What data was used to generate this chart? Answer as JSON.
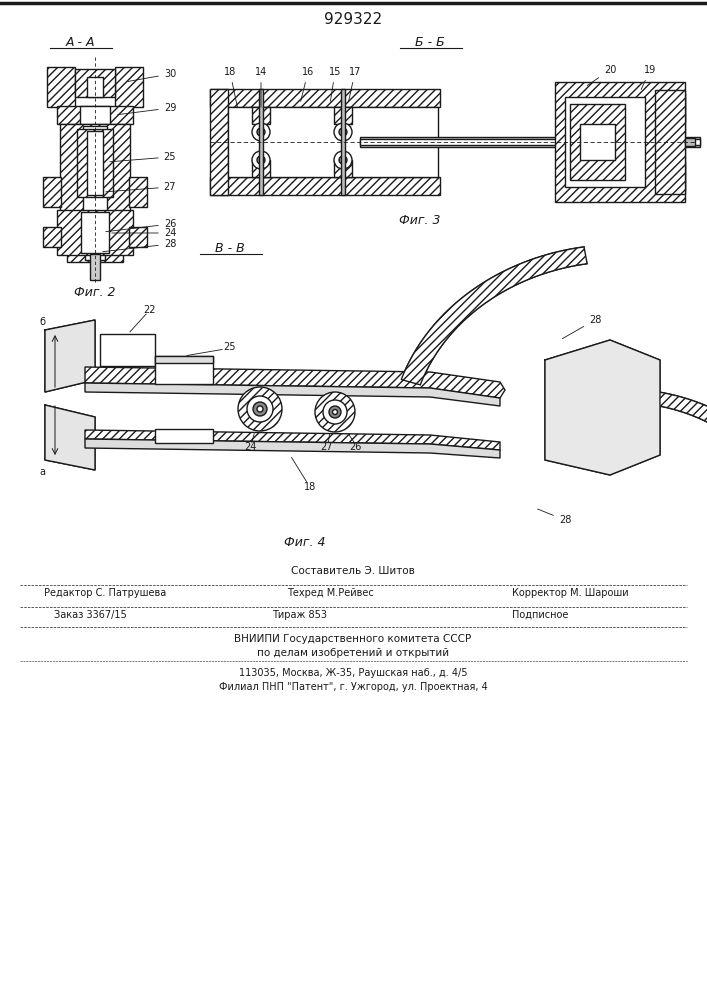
{
  "patent_number": "929322",
  "bg": "#ffffff",
  "lc": "#1a1a1a",
  "fig2_label": "А - А",
  "fig3_label": "Б - Б",
  "fig4_label": "В - В",
  "fig2_caption": "Фиг. 2",
  "fig3_caption": "Фиг. 3",
  "fig4_caption": "Фиг. 4",
  "footer_line1": "Составитель Э. Шитов",
  "footer_line2_left": "Редактор С. Патрушева",
  "footer_line2_mid": "Техред М.Рейвес",
  "footer_line2_right": "Корректор М. Шароши",
  "footer_line3_left": "Заказ 3367/15",
  "footer_line3_mid": "Тираж 853",
  "footer_line3_right": "Подписное",
  "footer_line4": "ВНИИПИ Государственного комитета СССР",
  "footer_line5": "по делам изобретений и открытий",
  "footer_line6": "113035, Москва, Ж-35, Раушская наб., д. 4/5",
  "footer_line7": "Филиал ПНП \"Патент\", г. Ужгород, ул. Проектная, 4"
}
